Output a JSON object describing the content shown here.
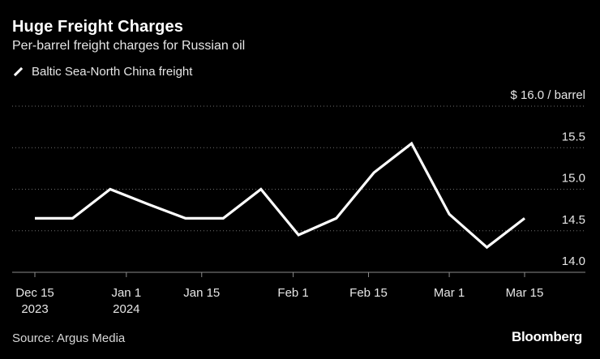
{
  "chart_data": {
    "type": "line",
    "title": "Huge Freight Charges",
    "subtitle": "Per-barrel freight charges for Russian oil",
    "legend": {
      "placement": "top-left"
    },
    "series": [
      {
        "name": "Baltic Sea-North China freight",
        "color": "#ffffff",
        "points": [
          {
            "x": "2023-12-15",
            "y": 14.65
          },
          {
            "x": "2023-12-22",
            "y": 14.65
          },
          {
            "x": "2023-12-29",
            "y": 15.0
          },
          {
            "x": "2024-01-05",
            "y": 14.82
          },
          {
            "x": "2024-01-12",
            "y": 14.65
          },
          {
            "x": "2024-01-19",
            "y": 14.65
          },
          {
            "x": "2024-01-26",
            "y": 15.0
          },
          {
            "x": "2024-02-02",
            "y": 14.45
          },
          {
            "x": "2024-02-09",
            "y": 14.65
          },
          {
            "x": "2024-02-16",
            "y": 15.2
          },
          {
            "x": "2024-02-23",
            "y": 15.55
          },
          {
            "x": "2024-03-01",
            "y": 14.7
          },
          {
            "x": "2024-03-08",
            "y": 14.3
          },
          {
            "x": "2024-03-15",
            "y": 14.65
          }
        ]
      }
    ],
    "y_axis": {
      "min": 14.0,
      "max": 16.0,
      "ticks": [
        {
          "value": 16.0,
          "label": "$ 16.0 / barrel"
        },
        {
          "value": 15.5,
          "label": "15.5"
        },
        {
          "value": 15.0,
          "label": "15.0"
        },
        {
          "value": 14.5,
          "label": "14.5"
        },
        {
          "value": 14.0,
          "label": "14.0"
        }
      ],
      "position": "right",
      "gridlines": true
    },
    "x_axis": {
      "min": "2023-12-15",
      "max": "2024-03-15",
      "ticks": [
        {
          "date": "2023-12-15",
          "line1": "Dec 15",
          "line2": "2023"
        },
        {
          "date": "2024-01-01",
          "line1": "Jan 1",
          "line2": "2024"
        },
        {
          "date": "2024-01-15",
          "line1": "Jan 15",
          "line2": ""
        },
        {
          "date": "2024-02-01",
          "line1": "Feb 1",
          "line2": ""
        },
        {
          "date": "2024-02-15",
          "line1": "Feb 15",
          "line2": ""
        },
        {
          "date": "2024-03-01",
          "line1": "Mar 1",
          "line2": ""
        },
        {
          "date": "2024-03-15",
          "line1": "Mar 15",
          "line2": ""
        }
      ]
    }
  },
  "footer": {
    "source": "Source: Argus Media",
    "brand": "Bloomberg"
  }
}
